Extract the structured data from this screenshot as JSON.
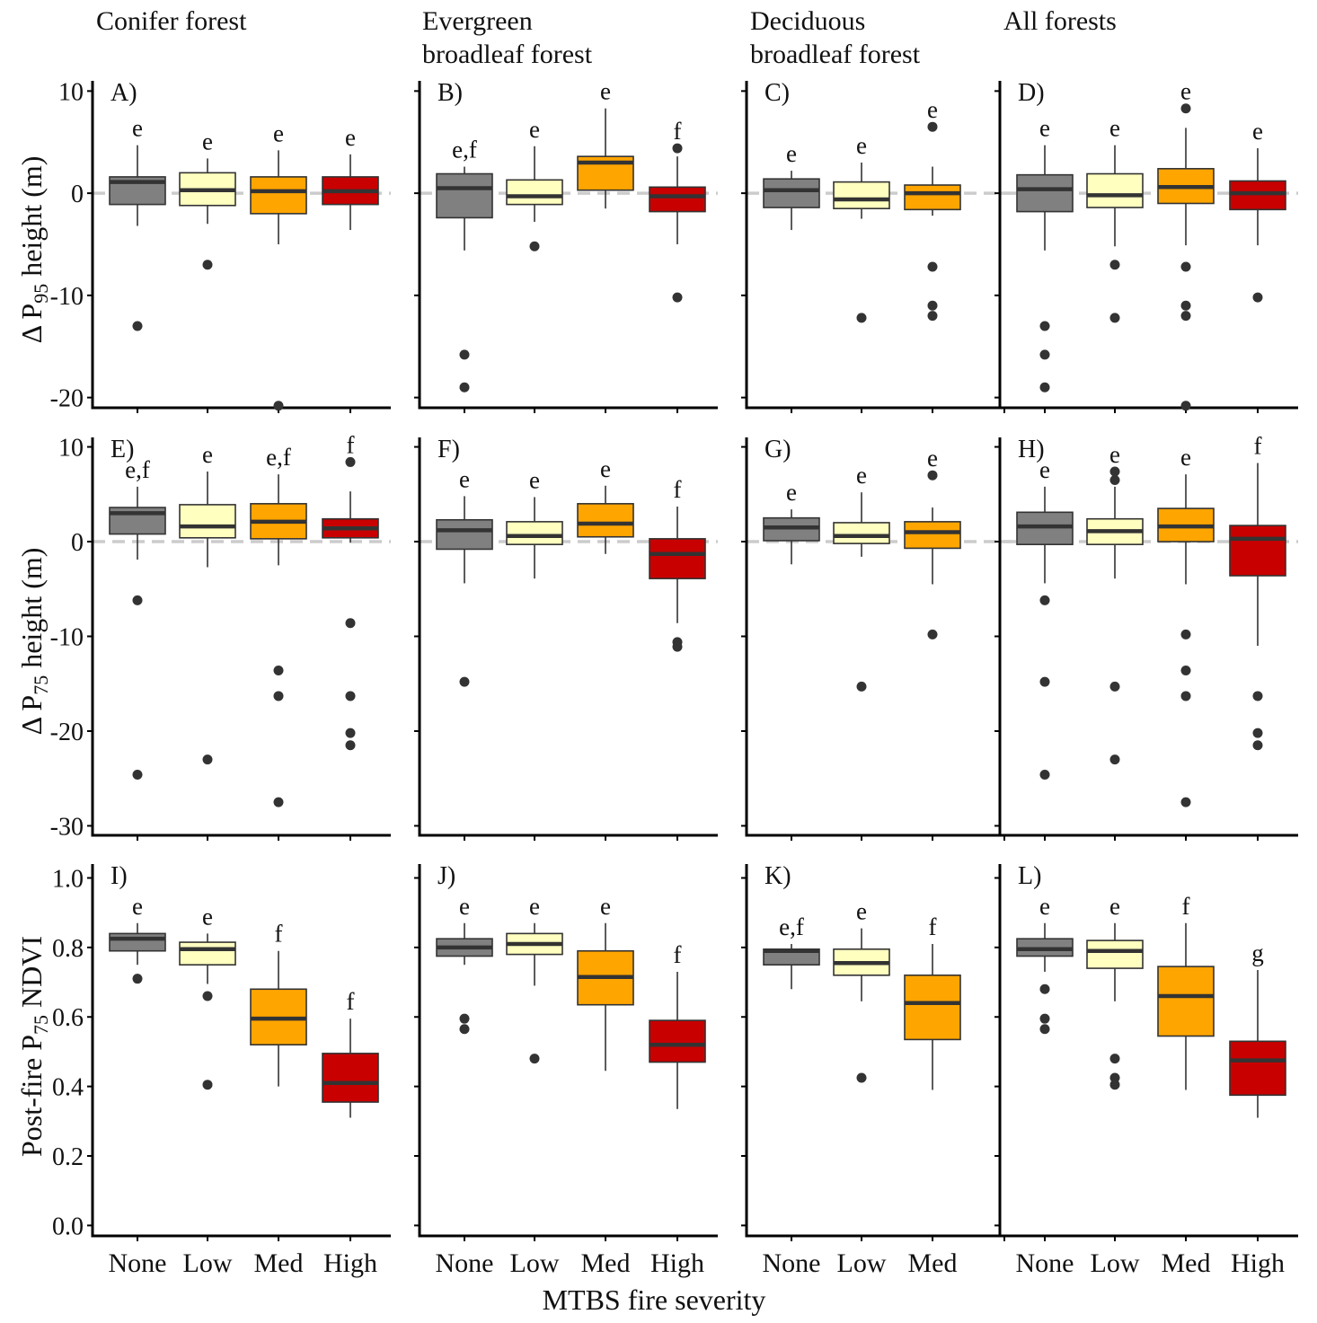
{
  "figure": {
    "x_title": "MTBS fire severity",
    "columns": [
      "Conifer forest",
      "Evergreen broadleaf forest",
      "Deciduous broadleaf forest",
      "All forests"
    ],
    "rows": [
      {
        "label_prefix": "Δ P",
        "label_sub": "95",
        "label_suffix": "height (m)"
      },
      {
        "label_prefix": "Δ P",
        "label_sub": "75",
        "label_suffix": "height (m)"
      },
      {
        "label_prefix": "Post-fire  P",
        "label_sub": "75",
        "label_suffix": "NDVI"
      }
    ]
  },
  "colors": {
    "None": "#808080",
    "Low": "#ffffc0",
    "Med": "#ffa500",
    "High": "#c80000",
    "refline": "#cccccc",
    "median": "#333333",
    "outlier": "#333333"
  },
  "chart_data": [
    {
      "type": "box",
      "panel": "A)",
      "column": "Conifer forest",
      "ylabel": "Δ P95 height (m)",
      "ylim": [
        -21,
        11
      ],
      "yticks": [
        10,
        0,
        -10,
        -20
      ],
      "tick_labels": [
        "10",
        "0",
        "-10",
        "-20"
      ],
      "refline": 0,
      "boxes": [
        {
          "cat": "None",
          "whisker_low": -3.2,
          "q1": -1.1,
          "median": 1.1,
          "q3": 1.6,
          "whisker_high": 4.7,
          "outliers": [
            -13
          ],
          "letter": "e"
        },
        {
          "cat": "Low",
          "whisker_low": -3.0,
          "q1": -1.2,
          "median": 0.3,
          "q3": 2.0,
          "whisker_high": 3.4,
          "outliers": [
            -7
          ],
          "letter": "e"
        },
        {
          "cat": "Med",
          "whisker_low": -5.0,
          "q1": -2.0,
          "median": 0.2,
          "q3": 1.6,
          "whisker_high": 4.2,
          "outliers": [
            -20.8
          ],
          "letter": "e"
        },
        {
          "cat": "High",
          "whisker_low": -3.6,
          "q1": -1.1,
          "median": 0.2,
          "q3": 1.6,
          "whisker_high": 3.8,
          "outliers": [],
          "letter": "e"
        }
      ]
    },
    {
      "type": "box",
      "panel": "B)",
      "column": "Evergreen broadleaf forest",
      "ylim": [
        -21,
        11
      ],
      "yticks": [
        10,
        0,
        -10,
        -20
      ],
      "refline": 0,
      "boxes": [
        {
          "cat": "None",
          "whisker_low": -5.6,
          "q1": -2.4,
          "median": 0.5,
          "q3": 1.9,
          "whisker_high": 2.6,
          "outliers": [
            -15.8,
            -19
          ],
          "letter": "e,f"
        },
        {
          "cat": "Low",
          "whisker_low": -2.8,
          "q1": -1.1,
          "median": -0.3,
          "q3": 1.3,
          "whisker_high": 4.6,
          "outliers": [
            -5.2
          ],
          "letter": "e"
        },
        {
          "cat": "Med",
          "whisker_low": -1.5,
          "q1": 0.3,
          "median": 3.0,
          "q3": 3.6,
          "whisker_high": 8.3,
          "outliers": [],
          "letter": "e"
        },
        {
          "cat": "High",
          "whisker_low": -5.0,
          "q1": -1.8,
          "median": -0.3,
          "q3": 0.6,
          "whisker_high": 3.6,
          "outliers": [
            4.4,
            -10.2
          ],
          "letter": "f"
        }
      ]
    },
    {
      "type": "box",
      "panel": "C)",
      "column": "Deciduous broadleaf forest",
      "ylim": [
        -21,
        11
      ],
      "yticks": [
        10,
        0,
        -10,
        -20
      ],
      "refline": 0,
      "boxes": [
        {
          "cat": "None",
          "whisker_low": -3.6,
          "q1": -1.4,
          "median": 0.3,
          "q3": 1.4,
          "whisker_high": 2.2,
          "outliers": [],
          "letter": "e"
        },
        {
          "cat": "Low",
          "whisker_low": -2.5,
          "q1": -1.5,
          "median": -0.6,
          "q3": 1.1,
          "whisker_high": 3.0,
          "outliers": [
            -12.2
          ],
          "letter": "e"
        },
        {
          "cat": "Med",
          "whisker_low": -2.2,
          "q1": -1.6,
          "median": 0.0,
          "q3": 0.8,
          "whisker_high": 2.6,
          "outliers": [
            6.5,
            -7.2,
            -11,
            -12
          ],
          "letter": "e"
        }
      ]
    },
    {
      "type": "box",
      "panel": "D)",
      "column": "All forests",
      "ylim": [
        -21,
        11
      ],
      "yticks": [
        10,
        0,
        -10,
        -20
      ],
      "refline": 0,
      "boxes": [
        {
          "cat": "None",
          "whisker_low": -5.6,
          "q1": -1.8,
          "median": 0.4,
          "q3": 1.8,
          "whisker_high": 4.7,
          "outliers": [
            -13,
            -15.8,
            -19
          ],
          "letter": "e"
        },
        {
          "cat": "Low",
          "whisker_low": -5.2,
          "q1": -1.4,
          "median": -0.2,
          "q3": 1.9,
          "whisker_high": 4.7,
          "outliers": [
            -7,
            -12.2
          ],
          "letter": "e"
        },
        {
          "cat": "Med",
          "whisker_low": -5.1,
          "q1": -1.0,
          "median": 0.6,
          "q3": 2.4,
          "whisker_high": 6.4,
          "outliers": [
            8.3,
            -7.2,
            -11,
            -12,
            -20.8
          ],
          "letter": "e"
        },
        {
          "cat": "High",
          "whisker_low": -5.1,
          "q1": -1.6,
          "median": 0.0,
          "q3": 1.2,
          "whisker_high": 4.4,
          "outliers": [
            -10.2
          ],
          "letter": "e"
        }
      ]
    },
    {
      "type": "box",
      "panel": "E)",
      "column": "Conifer forest",
      "ylabel": "Δ P75 height (m)",
      "ylim": [
        -31,
        11
      ],
      "yticks": [
        10,
        0,
        -10,
        -20,
        -30
      ],
      "tick_labels": [
        "10",
        "0",
        "-10",
        "-20",
        "-30"
      ],
      "refline": 0,
      "boxes": [
        {
          "cat": "None",
          "whisker_low": -1.9,
          "q1": 0.8,
          "median": 3.0,
          "q3": 3.6,
          "whisker_high": 5.8,
          "outliers": [
            -6.2,
            -24.6
          ],
          "letter": "e,f"
        },
        {
          "cat": "Low",
          "whisker_low": -2.7,
          "q1": 0.4,
          "median": 1.6,
          "q3": 3.9,
          "whisker_high": 7.4,
          "outliers": [
            -23
          ],
          "letter": "e"
        },
        {
          "cat": "Med",
          "whisker_low": -2.5,
          "q1": 0.3,
          "median": 2.1,
          "q3": 4.0,
          "whisker_high": 7.1,
          "outliers": [
            -13.6,
            -16.3,
            -27.5
          ],
          "letter": "e,f"
        },
        {
          "cat": "High",
          "whisker_low": -0.1,
          "q1": 0.4,
          "median": 1.4,
          "q3": 2.4,
          "whisker_high": 5.3,
          "outliers": [
            8.4,
            -8.6,
            -16.3,
            -20.2,
            -21.5
          ],
          "letter": "f"
        }
      ]
    },
    {
      "type": "box",
      "panel": "F)",
      "column": "Evergreen broadleaf forest",
      "ylim": [
        -31,
        11
      ],
      "yticks": [
        10,
        0,
        -10,
        -20,
        -30
      ],
      "refline": 0,
      "boxes": [
        {
          "cat": "None",
          "whisker_low": -4.4,
          "q1": -0.8,
          "median": 1.2,
          "q3": 2.3,
          "whisker_high": 4.8,
          "outliers": [
            -14.8
          ],
          "letter": "e"
        },
        {
          "cat": "Low",
          "whisker_low": -3.9,
          "q1": -0.3,
          "median": 0.6,
          "q3": 2.1,
          "whisker_high": 4.7,
          "outliers": [],
          "letter": "e"
        },
        {
          "cat": "Med",
          "whisker_low": -1.3,
          "q1": 0.5,
          "median": 1.9,
          "q3": 4.0,
          "whisker_high": 5.9,
          "outliers": [],
          "letter": "e"
        },
        {
          "cat": "High",
          "whisker_low": -8.6,
          "q1": -3.9,
          "median": -1.3,
          "q3": 0.3,
          "whisker_high": 3.7,
          "outliers": [
            -10.6,
            -11.1
          ],
          "letter": "f"
        }
      ]
    },
    {
      "type": "box",
      "panel": "G)",
      "column": "Deciduous broadleaf forest",
      "ylim": [
        -31,
        11
      ],
      "yticks": [
        10,
        0,
        -10,
        -20,
        -30
      ],
      "refline": 0,
      "boxes": [
        {
          "cat": "None",
          "whisker_low": -2.4,
          "q1": 0.1,
          "median": 1.5,
          "q3": 2.5,
          "whisker_high": 3.4,
          "outliers": [],
          "letter": "e"
        },
        {
          "cat": "Low",
          "whisker_low": -1.6,
          "q1": -0.2,
          "median": 0.6,
          "q3": 2.0,
          "whisker_high": 5.2,
          "outliers": [
            -15.3
          ],
          "letter": "e"
        },
        {
          "cat": "Med",
          "whisker_low": -4.5,
          "q1": -0.7,
          "median": 1.0,
          "q3": 2.1,
          "whisker_high": 3.6,
          "outliers": [
            7.0,
            -9.8
          ],
          "letter": "e"
        }
      ]
    },
    {
      "type": "box",
      "panel": "H)",
      "column": "All forests",
      "ylim": [
        -31,
        11
      ],
      "yticks": [
        10,
        0,
        -10,
        -20,
        -30
      ],
      "refline": 0,
      "boxes": [
        {
          "cat": "None",
          "whisker_low": -4.4,
          "q1": -0.3,
          "median": 1.6,
          "q3": 3.1,
          "whisker_high": 5.8,
          "outliers": [
            -6.2,
            -14.8,
            -24.6
          ],
          "letter": "e"
        },
        {
          "cat": "Low",
          "whisker_low": -3.9,
          "q1": -0.3,
          "median": 1.1,
          "q3": 2.4,
          "whisker_high": 5.8,
          "outliers": [
            7.4,
            6.5,
            -15.3,
            -23
          ],
          "letter": "e"
        },
        {
          "cat": "Med",
          "whisker_low": -4.5,
          "q1": 0.0,
          "median": 1.6,
          "q3": 3.5,
          "whisker_high": 7.1,
          "outliers": [
            -9.8,
            -13.6,
            -16.3,
            -27.5
          ],
          "letter": "e"
        },
        {
          "cat": "High",
          "whisker_low": -11.0,
          "q1": -3.6,
          "median": 0.3,
          "q3": 1.7,
          "whisker_high": 8.3,
          "outliers": [
            -16.3,
            -20.2,
            -21.5
          ],
          "letter": "f"
        }
      ]
    },
    {
      "type": "box",
      "panel": "I)",
      "column": "Conifer forest",
      "ylabel": "Post-fire P75 NDVI",
      "ylim": [
        -0.03,
        1.04
      ],
      "yticks": [
        1.0,
        0.8,
        0.6,
        0.4,
        0.2,
        0.0
      ],
      "tick_labels": [
        "1.0",
        "0.8",
        "0.6",
        "0.4",
        "0.2",
        "0.0"
      ],
      "refline": null,
      "boxes": [
        {
          "cat": "None",
          "whisker_low": 0.75,
          "q1": 0.79,
          "median": 0.825,
          "q3": 0.84,
          "whisker_high": 0.87,
          "outliers": [
            0.71
          ],
          "letter": "e"
        },
        {
          "cat": "Low",
          "whisker_low": 0.695,
          "q1": 0.75,
          "median": 0.795,
          "q3": 0.815,
          "whisker_high": 0.84,
          "outliers": [
            0.66,
            0.405
          ],
          "letter": "e"
        },
        {
          "cat": "Med",
          "whisker_low": 0.4,
          "q1": 0.52,
          "median": 0.595,
          "q3": 0.68,
          "whisker_high": 0.79,
          "outliers": [],
          "letter": "f"
        },
        {
          "cat": "High",
          "whisker_low": 0.31,
          "q1": 0.355,
          "median": 0.41,
          "q3": 0.495,
          "whisker_high": 0.595,
          "outliers": [],
          "letter": "f"
        }
      ]
    },
    {
      "type": "box",
      "panel": "J)",
      "column": "Evergreen broadleaf forest",
      "ylim": [
        -0.03,
        1.04
      ],
      "yticks": [
        1.0,
        0.8,
        0.6,
        0.4,
        0.2,
        0.0
      ],
      "refline": null,
      "boxes": [
        {
          "cat": "None",
          "whisker_low": 0.75,
          "q1": 0.775,
          "median": 0.8,
          "q3": 0.825,
          "whisker_high": 0.87,
          "outliers": [
            0.595,
            0.565
          ],
          "letter": "e"
        },
        {
          "cat": "Low",
          "whisker_low": 0.69,
          "q1": 0.78,
          "median": 0.81,
          "q3": 0.84,
          "whisker_high": 0.87,
          "outliers": [
            0.48
          ],
          "letter": "e"
        },
        {
          "cat": "Med",
          "whisker_low": 0.445,
          "q1": 0.635,
          "median": 0.715,
          "q3": 0.79,
          "whisker_high": 0.87,
          "outliers": [],
          "letter": "e"
        },
        {
          "cat": "High",
          "whisker_low": 0.335,
          "q1": 0.47,
          "median": 0.52,
          "q3": 0.59,
          "whisker_high": 0.73,
          "outliers": [],
          "letter": "f"
        }
      ]
    },
    {
      "type": "box",
      "panel": "K)",
      "column": "Deciduous broadleaf forest",
      "ylim": [
        -0.03,
        1.04
      ],
      "yticks": [
        1.0,
        0.8,
        0.6,
        0.4,
        0.2,
        0.0
      ],
      "refline": null,
      "boxes": [
        {
          "cat": "None",
          "whisker_low": 0.68,
          "q1": 0.75,
          "median": 0.79,
          "q3": 0.795,
          "whisker_high": 0.81,
          "outliers": [],
          "letter": "e,f"
        },
        {
          "cat": "Low",
          "whisker_low": 0.645,
          "q1": 0.72,
          "median": 0.755,
          "q3": 0.795,
          "whisker_high": 0.855,
          "outliers": [
            0.425
          ],
          "letter": "e"
        },
        {
          "cat": "Med",
          "whisker_low": 0.39,
          "q1": 0.535,
          "median": 0.64,
          "q3": 0.72,
          "whisker_high": 0.81,
          "outliers": [],
          "letter": "f"
        }
      ]
    },
    {
      "type": "box",
      "panel": "L)",
      "column": "All forests",
      "ylim": [
        -0.03,
        1.04
      ],
      "yticks": [
        1.0,
        0.8,
        0.6,
        0.4,
        0.2,
        0.0
      ],
      "refline": null,
      "boxes": [
        {
          "cat": "None",
          "whisker_low": 0.73,
          "q1": 0.775,
          "median": 0.795,
          "q3": 0.825,
          "whisker_high": 0.87,
          "outliers": [
            0.68,
            0.595,
            0.565
          ],
          "letter": "e"
        },
        {
          "cat": "Low",
          "whisker_low": 0.645,
          "q1": 0.74,
          "median": 0.79,
          "q3": 0.82,
          "whisker_high": 0.87,
          "outliers": [
            0.48,
            0.425,
            0.405
          ],
          "letter": "e"
        },
        {
          "cat": "Med",
          "whisker_low": 0.39,
          "q1": 0.545,
          "median": 0.66,
          "q3": 0.745,
          "whisker_high": 0.87,
          "outliers": [],
          "letter": "f"
        },
        {
          "cat": "High",
          "whisker_low": 0.31,
          "q1": 0.375,
          "median": 0.475,
          "q3": 0.53,
          "whisker_high": 0.735,
          "outliers": [],
          "letter": "g"
        }
      ]
    }
  ]
}
